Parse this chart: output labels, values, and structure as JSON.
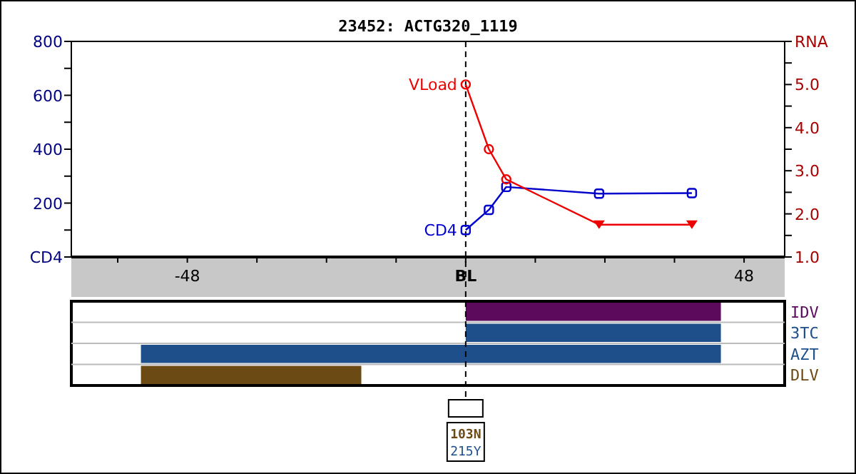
{
  "chart_data": [
    {
      "type": "line",
      "title": "23452: ACTG320_1119",
      "xlim": [
        -68,
        55
      ],
      "xticks": [
        {
          "value": -60,
          "label": null
        },
        -48,
        {
          "value": -36,
          "label": null
        },
        {
          "value": -24,
          "label": null
        },
        {
          "value": -12,
          "label": null
        },
        {
          "value": 0,
          "label": "BL"
        },
        {
          "value": 12,
          "label": null
        },
        {
          "value": 24,
          "label": null
        },
        {
          "value": 36,
          "label": null
        },
        48
      ],
      "ylim": [
        0,
        800
      ],
      "yticks": [
        {
          "value": 0,
          "label": "CD4"
        },
        {
          "value": 100,
          "label": null
        },
        200,
        {
          "value": 300,
          "label": null
        },
        400,
        {
          "value": 500,
          "label": null
        },
        600,
        {
          "value": 700,
          "label": null
        },
        800
      ],
      "y2lim": [
        1,
        6
      ],
      "y2ticks": [
        {
          "value": 1,
          "label": "1.0"
        },
        {
          "value": 1.5,
          "label": null
        },
        {
          "value": 2,
          "label": "2.0"
        },
        {
          "value": 2.5,
          "label": null
        },
        {
          "value": 3,
          "label": "3.0"
        },
        {
          "value": 3.5,
          "label": null
        },
        {
          "value": 4,
          "label": "4.0"
        },
        {
          "value": 4.5,
          "label": null
        },
        {
          "value": 5,
          "label": "5.0"
        },
        {
          "value": 5.5,
          "label": null
        },
        {
          "value": 6,
          "label": "RNA"
        }
      ],
      "ref_lines": [
        {
          "axis": "x",
          "value": 0,
          "line_style": "dashed",
          "color": "#000000"
        }
      ],
      "series": [
        {
          "name": "CD4",
          "color": "#0000cc",
          "x": [
            0,
            4,
            7,
            23,
            39
          ],
          "values": [
            100,
            175,
            260,
            235,
            237
          ],
          "marker": "square"
        },
        {
          "name": "VLoad",
          "color": "#ee0000",
          "axis": "y2",
          "x": [
            0,
            4,
            7,
            23,
            39
          ],
          "values": [
            5.0,
            3.5,
            2.8,
            1.75,
            1.75
          ],
          "marker": "none"
        },
        {
          "type": "scatter",
          "color": "#ee0000",
          "axis": "y2",
          "x": [
            0,
            4,
            7
          ],
          "values": [
            5.0,
            3.5,
            2.8
          ],
          "marker": "circle"
        },
        {
          "type": "scatter",
          "color": "#ee0000",
          "axis": "y2",
          "x": [
            23,
            39
          ],
          "values": [
            1.75,
            1.75
          ],
          "marker": "triangle"
        }
      ]
    },
    {
      "type": "bar",
      "orientation": "horizontal",
      "categories": [
        "IDV",
        "3TC",
        "AZT",
        "DLV"
      ],
      "colors": [
        "#5c0a5c",
        "#1f4f8a",
        "#1f4f8a",
        "#6b4a14"
      ],
      "base": [
        0,
        0,
        -56,
        -56
      ],
      "values": [
        44,
        44,
        100,
        38
      ],
      "xlim": [
        -68,
        55
      ],
      "tick_labels": "y",
      "ref_lines": [
        {
          "axis": "x",
          "value": 0,
          "line_style": "dashed",
          "color": "#000000"
        }
      ],
      "annotations": [
        "103N",
        "215Y"
      ]
    }
  ]
}
